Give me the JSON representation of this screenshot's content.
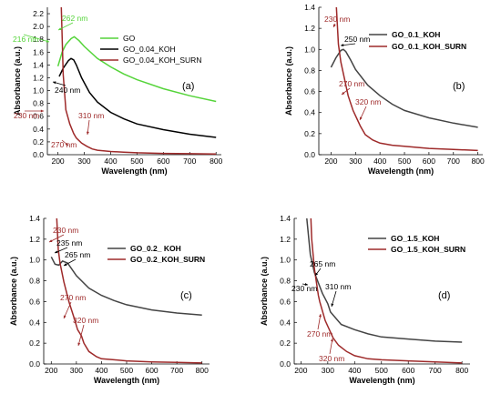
{
  "chart_data": [
    {
      "type": "line",
      "panel_label": "(a)",
      "xlabel": "Wavelength (nm)",
      "ylabel": "Absorbance (a.u.)",
      "xlim": [
        160,
        820
      ],
      "ylim": [
        0,
        2.3
      ],
      "xticks": [
        200,
        300,
        400,
        500,
        600,
        700,
        800
      ],
      "yticks": [
        0.0,
        0.2,
        0.4,
        0.6,
        0.8,
        1.0,
        1.2,
        1.4,
        1.6,
        1.8,
        2.0,
        2.2
      ],
      "legend_position": "top-left",
      "series": [
        {
          "name": "GO",
          "color": "#55d43a",
          "x": [
            200,
            216,
            230,
            250,
            262,
            280,
            300,
            350,
            400,
            450,
            500,
            600,
            700,
            800
          ],
          "y": [
            1.38,
            1.6,
            1.72,
            1.81,
            1.84,
            1.78,
            1.69,
            1.5,
            1.37,
            1.26,
            1.17,
            1.03,
            0.92,
            0.83
          ]
        },
        {
          "name": "GO_0.04_KOH",
          "color": "#000000",
          "x": [
            205,
            220,
            240,
            250,
            260,
            270,
            290,
            320,
            350,
            400,
            450,
            500,
            600,
            700,
            800
          ],
          "y": [
            1.22,
            1.35,
            1.47,
            1.5,
            1.48,
            1.4,
            1.2,
            0.97,
            0.82,
            0.66,
            0.56,
            0.48,
            0.39,
            0.32,
            0.27
          ]
        },
        {
          "name": "GO_0.04_KOH_SURN",
          "color": "#9e2a2a",
          "x": [
            213,
            220,
            230,
            245,
            260,
            270,
            290,
            310,
            330,
            350,
            400,
            450,
            500,
            600,
            700,
            800
          ],
          "y": [
            2.3,
            1.25,
            0.7,
            0.48,
            0.33,
            0.26,
            0.18,
            0.13,
            0.09,
            0.07,
            0.05,
            0.04,
            0.03,
            0.02,
            0.015,
            0.01
          ]
        }
      ],
      "annotations": [
        {
          "text": "262 nm",
          "color": "#55d43a"
        },
        {
          "text": "216 nm",
          "color": "#55d43a"
        },
        {
          "text": "240 nm",
          "color": "#000000"
        },
        {
          "text": "230 nm",
          "color": "#9e2a2a"
        },
        {
          "text": "310 nm",
          "color": "#9e2a2a"
        },
        {
          "text": "270 nm",
          "color": "#9e2a2a"
        }
      ]
    },
    {
      "type": "line",
      "panel_label": "(b)",
      "xlabel": "Wavelength (nm)",
      "ylabel": "Absorbance (a.u.)",
      "xlim": [
        150,
        820
      ],
      "ylim": [
        0,
        1.4
      ],
      "xticks": [
        200,
        300,
        400,
        500,
        600,
        700,
        800
      ],
      "yticks": [
        0.0,
        0.2,
        0.4,
        0.6,
        0.8,
        1.0,
        1.2,
        1.4
      ],
      "legend_position": "top-right",
      "series": [
        {
          "name": "GO_0.1_KOH",
          "color": "#444444",
          "x": [
            200,
            220,
            240,
            250,
            260,
            280,
            300,
            350,
            400,
            450,
            500,
            600,
            700,
            800
          ],
          "y": [
            0.83,
            0.92,
            0.99,
            1.0,
            0.98,
            0.9,
            0.81,
            0.66,
            0.56,
            0.48,
            0.42,
            0.35,
            0.3,
            0.26
          ]
        },
        {
          "name": "GO_0.1_KOH_SURN",
          "color": "#9e2a2a",
          "x": [
            222,
            230,
            240,
            255,
            270,
            290,
            310,
            320,
            340,
            370,
            400,
            450,
            500,
            600,
            700,
            800
          ],
          "y": [
            1.4,
            1.05,
            0.88,
            0.72,
            0.56,
            0.42,
            0.32,
            0.27,
            0.19,
            0.14,
            0.11,
            0.09,
            0.08,
            0.06,
            0.05,
            0.04
          ]
        }
      ],
      "annotations": [
        {
          "text": "230 nm",
          "color": "#9e2a2a"
        },
        {
          "text": "250 nm",
          "color": "#000000"
        },
        {
          "text": "270 nm",
          "color": "#9e2a2a"
        },
        {
          "text": "320 nm",
          "color": "#9e2a2a"
        }
      ]
    },
    {
      "type": "line",
      "panel_label": "(c)",
      "xlabel": "Wavelength (nm)",
      "ylabel": "Absorbance (a.u.)",
      "xlim": [
        170,
        830
      ],
      "ylim": [
        0,
        1.4
      ],
      "xticks": [
        200,
        300,
        400,
        500,
        600,
        700,
        800
      ],
      "yticks": [
        0.0,
        0.2,
        0.4,
        0.6,
        0.8,
        1.0,
        1.2,
        1.4
      ],
      "legend_position": "top-right",
      "series": [
        {
          "name": "GO_0.2_ KOH",
          "color": "#444444",
          "x": [
            200,
            215,
            230,
            245,
            265,
            280,
            300,
            350,
            400,
            450,
            500,
            600,
            700,
            800
          ],
          "y": [
            1.03,
            0.96,
            0.95,
            0.99,
            0.97,
            0.92,
            0.85,
            0.73,
            0.66,
            0.61,
            0.57,
            0.52,
            0.49,
            0.47
          ]
        },
        {
          "name": "GO_0.2_KOH_SURN",
          "color": "#9e2a2a",
          "x": [
            222,
            228,
            235,
            250,
            270,
            290,
            305,
            320,
            330,
            350,
            380,
            400,
            450,
            500,
            600,
            700,
            800
          ],
          "y": [
            1.4,
            1.1,
            0.97,
            0.79,
            0.6,
            0.45,
            0.33,
            0.27,
            0.2,
            0.12,
            0.07,
            0.05,
            0.04,
            0.03,
            0.02,
            0.015,
            0.01
          ]
        }
      ],
      "annotations": [
        {
          "text": "230 nm",
          "color": "#9e2a2a"
        },
        {
          "text": "235 nm",
          "color": "#000000"
        },
        {
          "text": "265 nm",
          "color": "#000000"
        },
        {
          "text": "270 nm",
          "color": "#9e2a2a"
        },
        {
          "text": "320 nm",
          "color": "#9e2a2a"
        }
      ]
    },
    {
      "type": "line",
      "panel_label": "(d)",
      "xlabel": "Wavelength (nm)",
      "ylabel": "Absorbance (a.u.)",
      "xlim": [
        175,
        830
      ],
      "ylim": [
        0,
        1.4
      ],
      "xticks": [
        200,
        300,
        400,
        500,
        600,
        700,
        800
      ],
      "yticks": [
        0.0,
        0.2,
        0.4,
        0.6,
        0.8,
        1.0,
        1.2,
        1.4
      ],
      "legend_position": "top-right",
      "series": [
        {
          "name": "GO_1.5_KOH",
          "color": "#444444",
          "x": [
            222,
            235,
            250,
            265,
            280,
            300,
            310,
            330,
            350,
            400,
            450,
            500,
            600,
            700,
            800
          ],
          "y": [
            1.4,
            1.05,
            0.88,
            0.78,
            0.68,
            0.58,
            0.5,
            0.44,
            0.38,
            0.33,
            0.29,
            0.26,
            0.24,
            0.22,
            0.21
          ]
        },
        {
          "name": "GO_1.5_KOH_SURN",
          "color": "#9e2a2a",
          "x": [
            237,
            240,
            250,
            265,
            270,
            290,
            320,
            340,
            370,
            400,
            450,
            500,
            600,
            700,
            800
          ],
          "y": [
            1.4,
            1.2,
            0.92,
            0.66,
            0.6,
            0.42,
            0.25,
            0.18,
            0.12,
            0.08,
            0.05,
            0.04,
            0.03,
            0.02,
            0.01
          ]
        }
      ],
      "annotations": [
        {
          "text": "265 nm",
          "color": "#000000"
        },
        {
          "text": "230 nm",
          "color": "#000000"
        },
        {
          "text": "310 nm",
          "color": "#000000"
        },
        {
          "text": "270 nm",
          "color": "#9e2a2a"
        },
        {
          "text": "320 nm",
          "color": "#9e2a2a"
        }
      ]
    }
  ]
}
